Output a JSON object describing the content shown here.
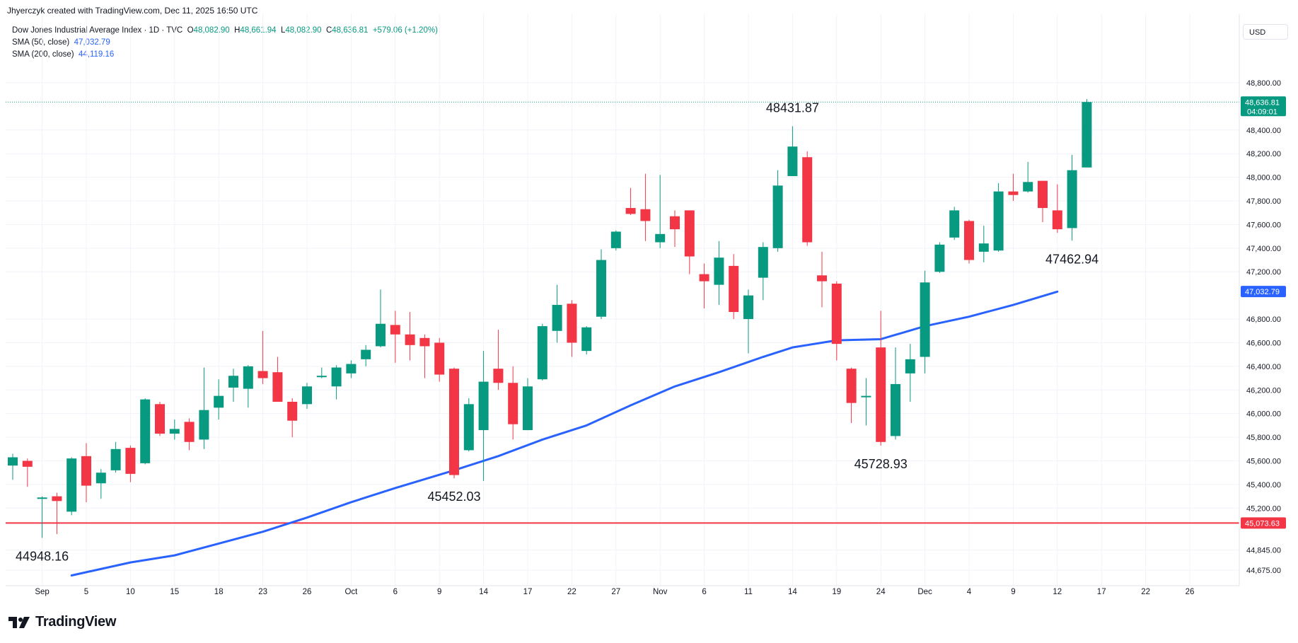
{
  "header": {
    "credit": "Jhyerczyk created with TradingView.com, Dec 11, 2025 16:50 UTC",
    "symbol": "Dow Jones Industrial Average Index · 1D · TVC",
    "o_label": "O",
    "o_value": "48,082.90",
    "h_label": "H",
    "h_value": "48,661.94",
    "l_label": "L",
    "l_value": "48,082.90",
    "c_label": "C",
    "c_value": "48,636.81",
    "change": "+579.06 (+1.20%)",
    "sma50_label": "SMA (50, close)",
    "sma50_value": "47,032.79",
    "sma200_label": "SMA (200, close)",
    "sma200_value": "44,119.16"
  },
  "currency": "USD",
  "brand": {
    "name": "TradingView",
    "icon": "tradingview-logo-icon"
  },
  "colors": {
    "up": "#089981",
    "down": "#f23645",
    "sma": "#2962ff",
    "hline": "#f23645",
    "grid": "#f0f3fa"
  },
  "chart_data": {
    "type": "candlestick",
    "y_ticks": [
      {
        "value": 44675,
        "label": "44,675.00"
      },
      {
        "value": 44845,
        "label": "44,845.00"
      },
      {
        "value": 45200,
        "label": "45,200.00"
      },
      {
        "value": 45400,
        "label": "45,400.00"
      },
      {
        "value": 45600,
        "label": "45,600.00"
      },
      {
        "value": 45800,
        "label": "45,800.00"
      },
      {
        "value": 46000,
        "label": "46,000.00"
      },
      {
        "value": 46200,
        "label": "46,200.00"
      },
      {
        "value": 46400,
        "label": "46,400.00"
      },
      {
        "value": 46600,
        "label": "46,600.00"
      },
      {
        "value": 46800,
        "label": "46,800.00"
      },
      {
        "value": 47200,
        "label": "47,200.00"
      },
      {
        "value": 47400,
        "label": "47,400.00"
      },
      {
        "value": 47600,
        "label": "47,600.00"
      },
      {
        "value": 47800,
        "label": "47,800.00"
      },
      {
        "value": 48000,
        "label": "48,000.00"
      },
      {
        "value": 48200,
        "label": "48,200.00"
      },
      {
        "value": 48400,
        "label": "48,400.00"
      },
      {
        "value": 48800,
        "label": "48,800.00"
      }
    ],
    "x_ticks": [
      {
        "i": 2,
        "label": "Sep"
      },
      {
        "i": 5,
        "label": "5"
      },
      {
        "i": 8,
        "label": "10"
      },
      {
        "i": 11,
        "label": "15"
      },
      {
        "i": 14,
        "label": "18"
      },
      {
        "i": 17,
        "label": "23"
      },
      {
        "i": 20,
        "label": "26"
      },
      {
        "i": 23,
        "label": "Oct"
      },
      {
        "i": 26,
        "label": "6"
      },
      {
        "i": 29,
        "label": "9"
      },
      {
        "i": 32,
        "label": "14"
      },
      {
        "i": 35,
        "label": "17"
      },
      {
        "i": 38,
        "label": "22"
      },
      {
        "i": 41,
        "label": "27"
      },
      {
        "i": 44,
        "label": "Nov"
      },
      {
        "i": 47,
        "label": "6"
      },
      {
        "i": 50,
        "label": "11"
      },
      {
        "i": 53,
        "label": "14"
      },
      {
        "i": 56,
        "label": "19"
      },
      {
        "i": 59,
        "label": "24"
      },
      {
        "i": 62,
        "label": "Dec"
      },
      {
        "i": 65,
        "label": "4"
      },
      {
        "i": 68,
        "label": "9"
      },
      {
        "i": 71,
        "label": "12"
      },
      {
        "i": 74,
        "label": "17"
      },
      {
        "i": 77,
        "label": "22"
      },
      {
        "i": 80,
        "label": "26"
      }
    ],
    "candles": [
      {
        "o": 45560,
        "h": 45660,
        "l": 45440,
        "c": 45630
      },
      {
        "o": 45600,
        "h": 45620,
        "l": 45380,
        "c": 45550
      },
      {
        "o": 45290,
        "h": 45300,
        "l": 44948,
        "c": 45290
      },
      {
        "o": 45300,
        "h": 45330,
        "l": 44980,
        "c": 45260
      },
      {
        "o": 45170,
        "h": 45630,
        "l": 45140,
        "c": 45620
      },
      {
        "o": 45640,
        "h": 45750,
        "l": 45250,
        "c": 45390
      },
      {
        "o": 45410,
        "h": 45530,
        "l": 45280,
        "c": 45500
      },
      {
        "o": 45520,
        "h": 45760,
        "l": 45500,
        "c": 45700
      },
      {
        "o": 45710,
        "h": 45730,
        "l": 45420,
        "c": 45490
      },
      {
        "o": 45580,
        "h": 46130,
        "l": 45570,
        "c": 46120
      },
      {
        "o": 46080,
        "h": 46100,
        "l": 45810,
        "c": 45830
      },
      {
        "o": 45830,
        "h": 45950,
        "l": 45780,
        "c": 45870
      },
      {
        "o": 45930,
        "h": 45960,
        "l": 45690,
        "c": 45760
      },
      {
        "o": 45780,
        "h": 46390,
        "l": 45700,
        "c": 46030
      },
      {
        "o": 46050,
        "h": 46290,
        "l": 45950,
        "c": 46150
      },
      {
        "o": 46220,
        "h": 46380,
        "l": 46100,
        "c": 46320
      },
      {
        "o": 46210,
        "h": 46410,
        "l": 46050,
        "c": 46400
      },
      {
        "o": 46360,
        "h": 46700,
        "l": 46250,
        "c": 46300
      },
      {
        "o": 46350,
        "h": 46480,
        "l": 46110,
        "c": 46100
      },
      {
        "o": 46100,
        "h": 46130,
        "l": 45800,
        "c": 45940
      },
      {
        "o": 46080,
        "h": 46260,
        "l": 46040,
        "c": 46230
      },
      {
        "o": 46310,
        "h": 46390,
        "l": 46300,
        "c": 46320
      },
      {
        "o": 46230,
        "h": 46410,
        "l": 46120,
        "c": 46390
      },
      {
        "o": 46340,
        "h": 46450,
        "l": 46300,
        "c": 46420
      },
      {
        "o": 46460,
        "h": 46580,
        "l": 46400,
        "c": 46540
      },
      {
        "o": 46570,
        "h": 47050,
        "l": 46560,
        "c": 46760
      },
      {
        "o": 46750,
        "h": 46870,
        "l": 46430,
        "c": 46670
      },
      {
        "o": 46670,
        "h": 46860,
        "l": 46450,
        "c": 46580
      },
      {
        "o": 46640,
        "h": 46670,
        "l": 46300,
        "c": 46570
      },
      {
        "o": 46600,
        "h": 46640,
        "l": 46270,
        "c": 46330
      },
      {
        "o": 46380,
        "h": 46390,
        "l": 45452,
        "c": 45480
      },
      {
        "o": 45690,
        "h": 46130,
        "l": 45680,
        "c": 46080
      },
      {
        "o": 45860,
        "h": 46530,
        "l": 45430,
        "c": 46270
      },
      {
        "o": 46380,
        "h": 46710,
        "l": 46200,
        "c": 46260
      },
      {
        "o": 46260,
        "h": 46400,
        "l": 45780,
        "c": 45910
      },
      {
        "o": 45860,
        "h": 46300,
        "l": 45860,
        "c": 46230
      },
      {
        "o": 46290,
        "h": 46760,
        "l": 46280,
        "c": 46740
      },
      {
        "o": 46700,
        "h": 47090,
        "l": 46600,
        "c": 46920
      },
      {
        "o": 46930,
        "h": 46960,
        "l": 46480,
        "c": 46600
      },
      {
        "o": 46530,
        "h": 46740,
        "l": 46500,
        "c": 46730
      },
      {
        "o": 46820,
        "h": 47390,
        "l": 46800,
        "c": 47300
      },
      {
        "o": 47400,
        "h": 47550,
        "l": 47380,
        "c": 47540
      },
      {
        "o": 47740,
        "h": 47910,
        "l": 47680,
        "c": 47690
      },
      {
        "o": 47730,
        "h": 48030,
        "l": 47460,
        "c": 47630
      },
      {
        "o": 47450,
        "h": 48020,
        "l": 47400,
        "c": 47520
      },
      {
        "o": 47670,
        "h": 47720,
        "l": 47410,
        "c": 47560
      },
      {
        "o": 47720,
        "h": 47720,
        "l": 47180,
        "c": 47330
      },
      {
        "o": 47180,
        "h": 47270,
        "l": 46890,
        "c": 47120
      },
      {
        "o": 47090,
        "h": 47460,
        "l": 46920,
        "c": 47320
      },
      {
        "o": 47250,
        "h": 47350,
        "l": 46800,
        "c": 46860
      },
      {
        "o": 46800,
        "h": 47050,
        "l": 46510,
        "c": 47000
      },
      {
        "o": 47150,
        "h": 47450,
        "l": 46960,
        "c": 47410
      },
      {
        "o": 47400,
        "h": 48060,
        "l": 47370,
        "c": 47930
      },
      {
        "o": 48010,
        "h": 48432,
        "l": 48010,
        "c": 48260
      },
      {
        "o": 48170,
        "h": 48220,
        "l": 47420,
        "c": 47450
      },
      {
        "o": 47170,
        "h": 47370,
        "l": 46900,
        "c": 47120
      },
      {
        "o": 47100,
        "h": 47120,
        "l": 46450,
        "c": 46590
      },
      {
        "o": 46380,
        "h": 46390,
        "l": 45920,
        "c": 46090
      },
      {
        "o": 46140,
        "h": 46300,
        "l": 45900,
        "c": 46150
      },
      {
        "o": 46560,
        "h": 46870,
        "l": 45729,
        "c": 45760
      },
      {
        "o": 45810,
        "h": 46560,
        "l": 45780,
        "c": 46250
      },
      {
        "o": 46340,
        "h": 46590,
        "l": 46100,
        "c": 46460
      },
      {
        "o": 46480,
        "h": 47210,
        "l": 46340,
        "c": 47110
      },
      {
        "o": 47200,
        "h": 47450,
        "l": 47190,
        "c": 47430
      },
      {
        "o": 47490,
        "h": 47750,
        "l": 47470,
        "c": 47720
      },
      {
        "o": 47630,
        "h": 47640,
        "l": 47270,
        "c": 47300
      },
      {
        "o": 47370,
        "h": 47590,
        "l": 47280,
        "c": 47440
      },
      {
        "o": 47380,
        "h": 47950,
        "l": 47370,
        "c": 47880
      },
      {
        "o": 47880,
        "h": 48030,
        "l": 47800,
        "c": 47850
      },
      {
        "o": 47880,
        "h": 48130,
        "l": 47870,
        "c": 47960
      },
      {
        "o": 47970,
        "h": 47970,
        "l": 47620,
        "c": 47740
      },
      {
        "o": 47720,
        "h": 47940,
        "l": 47530,
        "c": 47560
      },
      {
        "o": 47570,
        "h": 48190,
        "l": 47463,
        "c": 48060
      },
      {
        "o": 48083,
        "h": 48662,
        "l": 48083,
        "c": 48637
      }
    ],
    "sma50": [
      [
        4,
        44630
      ],
      [
        8,
        44740
      ],
      [
        11,
        44800
      ],
      [
        14,
        44900
      ],
      [
        17,
        45000
      ],
      [
        20,
        45120
      ],
      [
        23,
        45250
      ],
      [
        26,
        45370
      ],
      [
        30,
        45520
      ],
      [
        33,
        45640
      ],
      [
        36,
        45780
      ],
      [
        39,
        45900
      ],
      [
        42,
        46070
      ],
      [
        45,
        46230
      ],
      [
        48,
        46350
      ],
      [
        51,
        46480
      ],
      [
        53,
        46560
      ],
      [
        56,
        46620
      ],
      [
        59,
        46630
      ],
      [
        62,
        46740
      ],
      [
        65,
        46820
      ],
      [
        68,
        46920
      ],
      [
        71,
        47032
      ]
    ],
    "hline": {
      "value": 45073.63,
      "label": "45,073.63"
    },
    "last_price": {
      "value": 48636.81,
      "label": "48,636.81",
      "countdown": "04:09:01"
    },
    "sma50_last": {
      "value": 47032.79,
      "label": "47,032.79"
    },
    "annotations": [
      {
        "i": 2,
        "value": 44948.16,
        "label": "44948.16",
        "pos": "below"
      },
      {
        "i": 30,
        "value": 45452.03,
        "label": "45452.03",
        "pos": "below"
      },
      {
        "i": 53,
        "value": 48431.87,
        "label": "48431.87",
        "pos": "above"
      },
      {
        "i": 59,
        "value": 45728.93,
        "label": "45728.93",
        "pos": "below"
      },
      {
        "i": 72,
        "value": 47462.94,
        "label": "47462.94",
        "pos": "below"
      }
    ]
  }
}
